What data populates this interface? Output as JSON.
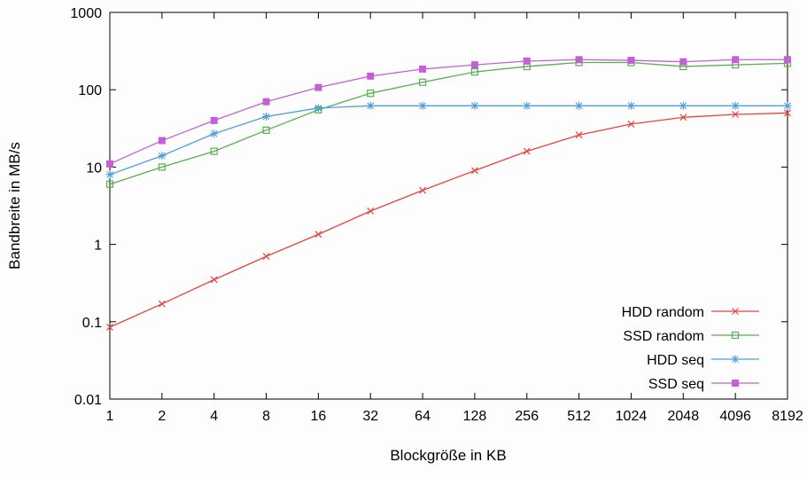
{
  "chart_data": {
    "type": "line",
    "title": "",
    "xlabel": "Blockgröße in KB",
    "ylabel": "Bandbreite in MB/s",
    "x_scale": "log2",
    "y_scale": "log10",
    "ylim": [
      0.01,
      1000
    ],
    "y_ticks": [
      0.01,
      0.1,
      1,
      10,
      100,
      1000
    ],
    "categories": [
      1,
      2,
      4,
      8,
      16,
      32,
      64,
      128,
      256,
      512,
      1024,
      2048,
      4096,
      8192
    ],
    "grid": "off",
    "legend_position": "inside bottom-right",
    "axis_color": "#000000",
    "series": [
      {
        "name": "HDD random",
        "color": "#e8433c",
        "marker": "x",
        "values": [
          0.085,
          0.17,
          0.35,
          0.7,
          1.35,
          2.7,
          5,
          9,
          16,
          26,
          36,
          44,
          48,
          50
        ]
      },
      {
        "name": "SSD random",
        "color": "#57b04f",
        "marker": "open-square",
        "values": [
          6,
          10,
          16,
          30,
          55,
          90,
          125,
          170,
          200,
          225,
          225,
          200,
          210,
          220
        ]
      },
      {
        "name": "HDD seq",
        "color": "#4f9fd8",
        "marker": "asterisk",
        "values": [
          8,
          14,
          27,
          45,
          58,
          62,
          62,
          62,
          62,
          62,
          62,
          62,
          62,
          62
        ]
      },
      {
        "name": "SSD seq",
        "color": "#c45fd8",
        "marker": "filled-square",
        "values": [
          11,
          22,
          40,
          70,
          107,
          150,
          185,
          210,
          235,
          245,
          240,
          230,
          245,
          245
        ]
      }
    ]
  }
}
